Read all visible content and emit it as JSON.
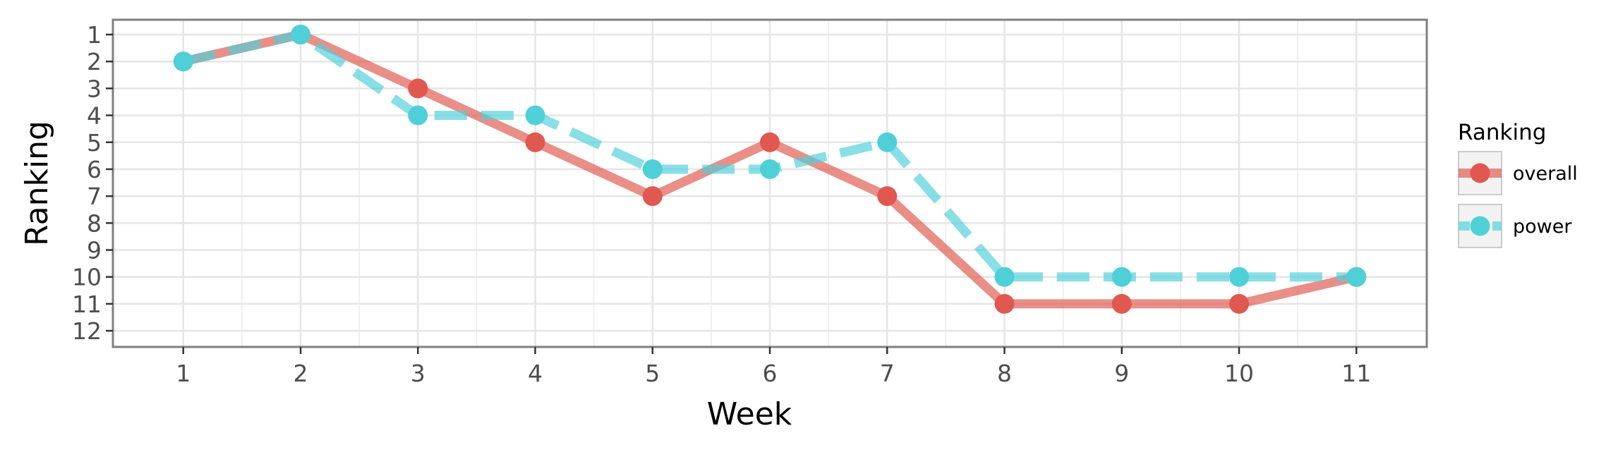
{
  "chart_data": {
    "type": "line",
    "title": "",
    "xlabel": "Week",
    "ylabel": "Ranking",
    "x": [
      1,
      2,
      3,
      4,
      5,
      6,
      7,
      8,
      9,
      10,
      11
    ],
    "x_ticks": [
      "1",
      "2",
      "3",
      "4",
      "5",
      "6",
      "7",
      "8",
      "9",
      "10",
      "11"
    ],
    "y_ticks": [
      "1",
      "2",
      "3",
      "4",
      "5",
      "6",
      "7",
      "8",
      "9",
      "10",
      "11",
      "12"
    ],
    "xlim": [
      0.4,
      11.6
    ],
    "ylim": [
      12.6,
      0.45
    ],
    "y_reversed": true,
    "grid": true,
    "legend": {
      "title": "Ranking",
      "position": "right"
    },
    "series": [
      {
        "name": "overall",
        "color": "#e0584f",
        "line_style": "solid",
        "values": [
          2,
          1,
          3,
          5,
          7,
          5,
          7,
          11,
          11,
          11,
          10
        ]
      },
      {
        "name": "power",
        "color": "#4fd0d8",
        "line_style": "dashed",
        "values": [
          2,
          1,
          4,
          4,
          6,
          6,
          5,
          10,
          10,
          10,
          10
        ]
      }
    ]
  }
}
